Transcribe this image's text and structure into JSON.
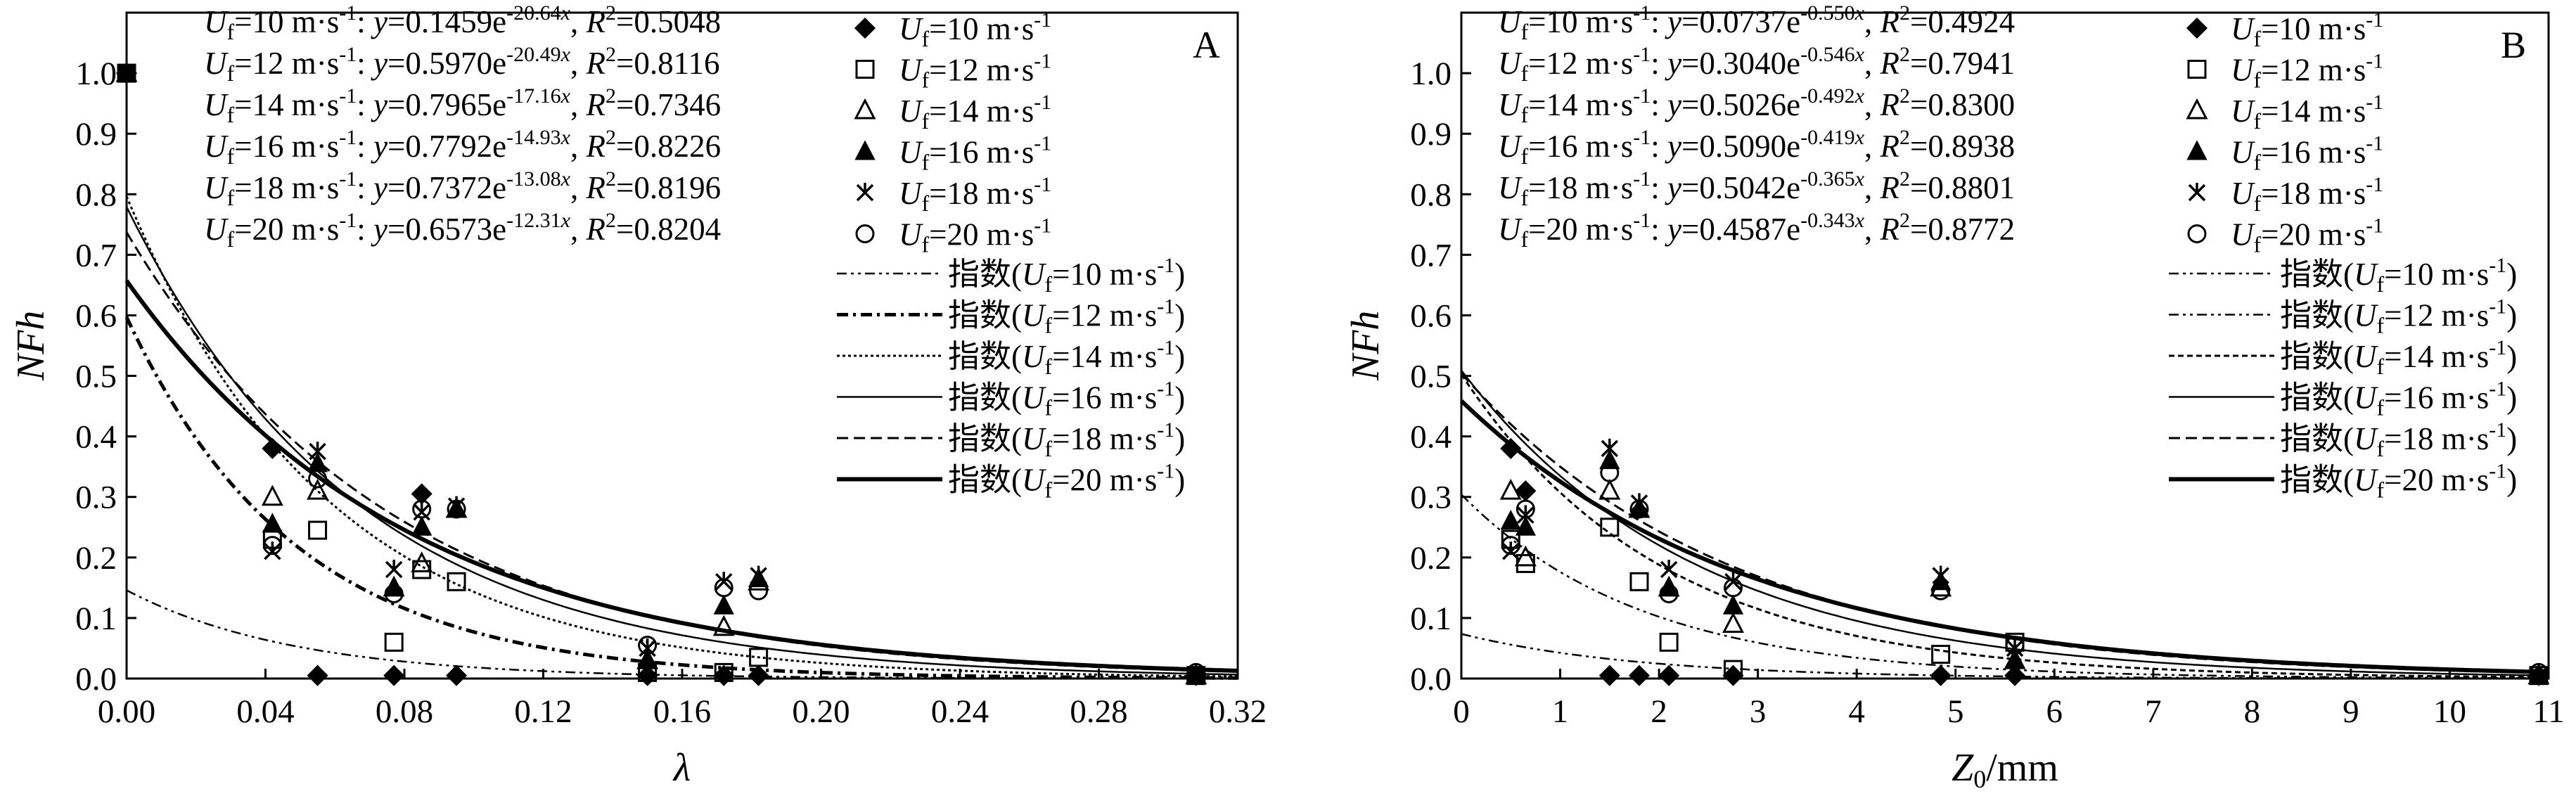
{
  "chart_data": [
    {
      "panel": "A",
      "type": "scatter",
      "xlabel": "λ",
      "ylabel": "NFh",
      "xlim": [
        0,
        0.32
      ],
      "ylim": [
        0,
        1.1
      ],
      "xticks": [
        "0.00",
        "0.04",
        "0.08",
        "0.12",
        "0.16",
        "0.20",
        "0.24",
        "0.28",
        "0.32"
      ],
      "yticks": [
        "0.0",
        "0.1",
        "0.2",
        "0.3",
        "0.4",
        "0.5",
        "0.6",
        "0.7",
        "0.8",
        "0.9",
        "1.0"
      ],
      "equations": [
        {
          "uf": "10",
          "a": "0.1459",
          "b": "-20.64",
          "r2": "0.5048"
        },
        {
          "uf": "12",
          "a": "0.5970",
          "b": "-20.49",
          "r2": "0.8116"
        },
        {
          "uf": "14",
          "a": "0.7965",
          "b": "-17.16",
          "r2": "0.7346"
        },
        {
          "uf": "16",
          "a": "0.7792",
          "b": "-14.93",
          "r2": "0.8226"
        },
        {
          "uf": "18",
          "a": "0.7372",
          "b": "-13.08",
          "r2": "0.8196"
        },
        {
          "uf": "20",
          "a": "0.6573",
          "b": "-12.31",
          "r2": "0.8204"
        }
      ],
      "series": [
        {
          "name": "Uf=10 m·s-1",
          "marker": "diamond-filled",
          "x": [
            0.0,
            0.042,
            0.055,
            0.077,
            0.085,
            0.095,
            0.15,
            0.172,
            0.182,
            0.308
          ],
          "y": [
            1.0,
            0.38,
            0.005,
            0.005,
            0.305,
            0.005,
            0.005,
            0.005,
            0.005,
            0.005
          ]
        },
        {
          "name": "Uf=12 m·s-1",
          "marker": "square-open",
          "x": [
            0.0,
            0.042,
            0.055,
            0.077,
            0.085,
            0.095,
            0.15,
            0.172,
            0.182,
            0.308
          ],
          "y": [
            1.0,
            0.23,
            0.245,
            0.06,
            0.18,
            0.16,
            0.01,
            0.01,
            0.035,
            0.005
          ]
        },
        {
          "name": "Uf=14 m·s-1",
          "marker": "triangle-open",
          "x": [
            0.0,
            0.042,
            0.055,
            0.077,
            0.085,
            0.095,
            0.15,
            0.172,
            0.182,
            0.308
          ],
          "y": [
            1.0,
            0.3,
            0.31,
            0.15,
            0.19,
            0.28,
            0.03,
            0.085,
            0.16,
            0.005
          ]
        },
        {
          "name": "Uf=16 m·s-1",
          "marker": "triangle-filled",
          "x": [
            0.0,
            0.042,
            0.055,
            0.077,
            0.085,
            0.095,
            0.15,
            0.172,
            0.182,
            0.308
          ],
          "y": [
            1.0,
            0.255,
            0.355,
            0.15,
            0.25,
            0.28,
            0.03,
            0.12,
            0.165,
            0.005
          ]
        },
        {
          "name": "Uf=18 m·s-1",
          "marker": "star",
          "x": [
            0.0,
            0.042,
            0.055,
            0.077,
            0.085,
            0.095,
            0.15,
            0.172,
            0.182,
            0.308
          ],
          "y": [
            1.0,
            0.21,
            0.375,
            0.18,
            0.275,
            0.285,
            0.05,
            0.16,
            0.17,
            0.005
          ]
        },
        {
          "name": "Uf=20 m·s-1",
          "marker": "circle-open",
          "x": [
            0.0,
            0.042,
            0.055,
            0.077,
            0.085,
            0.095,
            0.15,
            0.172,
            0.182,
            0.308
          ],
          "y": [
            1.0,
            0.22,
            0.33,
            0.14,
            0.28,
            0.28,
            0.055,
            0.15,
            0.145,
            0.01
          ]
        }
      ],
      "fits": [
        {
          "name": "指数(Uf=10 m·s-1)",
          "a": 0.1459,
          "b": -20.64,
          "dash": "14 6 4 6 4 6",
          "width": 2.5
        },
        {
          "name": "指数(Uf=12 m·s-1)",
          "a": 0.597,
          "b": -20.49,
          "dash": "16 7 4 7",
          "width": 5
        },
        {
          "name": "指数(Uf=14 m·s-1)",
          "a": 0.7965,
          "b": -17.16,
          "dash": "4 4",
          "width": 3
        },
        {
          "name": "指数(Uf=16 m·s-1)",
          "a": 0.7792,
          "b": -14.93,
          "dash": "",
          "width": 2.5
        },
        {
          "name": "指数(Uf=18 m·s-1)",
          "a": 0.7372,
          "b": -13.08,
          "dash": "16 8",
          "width": 3
        },
        {
          "name": "指数(Uf=20 m·s-1)",
          "a": 0.6573,
          "b": -12.31,
          "dash": "",
          "width": 6
        }
      ]
    },
    {
      "panel": "B",
      "type": "scatter",
      "xlabel": "Z0/mm",
      "ylabel": "NFh",
      "xlim": [
        0,
        11
      ],
      "ylim": [
        0,
        1.1
      ],
      "xticks": [
        "0",
        "1",
        "2",
        "3",
        "4",
        "5",
        "6",
        "7",
        "8",
        "9",
        "10",
        "11"
      ],
      "yticks": [
        "0.0",
        "0.1",
        "0.2",
        "0.3",
        "0.4",
        "0.5",
        "0.6",
        "0.7",
        "0.8",
        "0.9",
        "1.0"
      ],
      "equations": [
        {
          "uf": "10",
          "a": "0.0737",
          "b": "-0.550",
          "r2": "0.4924"
        },
        {
          "uf": "12",
          "a": "0.3040",
          "b": "-0.546",
          "r2": "0.7941"
        },
        {
          "uf": "14",
          "a": "0.5026",
          "b": "-0.492",
          "r2": "0.8300"
        },
        {
          "uf": "16",
          "a": "0.5090",
          "b": "-0.419",
          "r2": "0.8938"
        },
        {
          "uf": "18",
          "a": "0.5042",
          "b": "-0.365",
          "r2": "0.8801"
        },
        {
          "uf": "20",
          "a": "0.4587",
          "b": "-0.343",
          "r2": "0.8772"
        }
      ],
      "series": [
        {
          "name": "Uf=10 m·s-1",
          "marker": "diamond-filled",
          "x": [
            0.5,
            0.65,
            1.5,
            1.8,
            2.1,
            2.75,
            4.85,
            5.6,
            10.9
          ],
          "y": [
            0.38,
            0.31,
            0.005,
            0.005,
            0.005,
            0.005,
            0.005,
            0.005,
            0.005
          ]
        },
        {
          "name": "Uf=12 m·s-1",
          "marker": "square-open",
          "x": [
            0.5,
            0.65,
            1.5,
            1.8,
            2.1,
            2.75,
            4.85,
            5.6,
            10.9
          ],
          "y": [
            0.23,
            0.19,
            0.25,
            0.16,
            0.06,
            0.015,
            0.04,
            0.06,
            0.005
          ]
        },
        {
          "name": "Uf=14 m·s-1",
          "marker": "triangle-open",
          "x": [
            0.5,
            0.65,
            1.5,
            1.8,
            2.1,
            2.75,
            4.85,
            5.6,
            10.9
          ],
          "y": [
            0.31,
            0.2,
            0.31,
            0.28,
            0.15,
            0.09,
            0.15,
            0.03,
            0.005
          ]
        },
        {
          "name": "Uf=16 m·s-1",
          "marker": "triangle-filled",
          "x": [
            0.5,
            0.65,
            1.5,
            1.8,
            2.1,
            2.75,
            4.85,
            5.6,
            10.9
          ],
          "y": [
            0.26,
            0.25,
            0.36,
            0.28,
            0.15,
            0.12,
            0.16,
            0.03,
            0.005
          ]
        },
        {
          "name": "Uf=18 m·s-1",
          "marker": "star",
          "x": [
            0.5,
            0.65,
            1.5,
            1.8,
            2.1,
            2.75,
            4.85,
            5.6,
            10.9
          ],
          "y": [
            0.21,
            0.27,
            0.38,
            0.29,
            0.18,
            0.16,
            0.17,
            0.05,
            0.005
          ]
        },
        {
          "name": "Uf=20 m·s-1",
          "marker": "circle-open",
          "x": [
            0.5,
            0.65,
            1.5,
            1.8,
            2.1,
            2.75,
            4.85,
            5.6,
            10.9
          ],
          "y": [
            0.22,
            0.28,
            0.34,
            0.28,
            0.14,
            0.15,
            0.145,
            0.055,
            0.01
          ]
        }
      ],
      "fits": [
        {
          "name": "指数(Uf=10 m·s-1)",
          "a": 0.0737,
          "b": -0.55,
          "dash": "14 6 4 6 4 6",
          "width": 2.5
        },
        {
          "name": "指数(Uf=12 m·s-1)",
          "a": 0.304,
          "b": -0.546,
          "dash": "14 6 4 6 4 6",
          "width": 2.5
        },
        {
          "name": "指数(Uf=14 m·s-1)",
          "a": 0.5026,
          "b": -0.492,
          "dash": "8 5",
          "width": 3
        },
        {
          "name": "指数(Uf=16 m·s-1)",
          "a": 0.509,
          "b": -0.419,
          "dash": "",
          "width": 2.5
        },
        {
          "name": "指数(Uf=18 m·s-1)",
          "a": 0.5042,
          "b": -0.365,
          "dash": "16 8",
          "width": 3
        },
        {
          "name": "指数(Uf=20 m·s-1)",
          "a": 0.4587,
          "b": -0.343,
          "dash": "",
          "width": 6
        }
      ]
    }
  ]
}
